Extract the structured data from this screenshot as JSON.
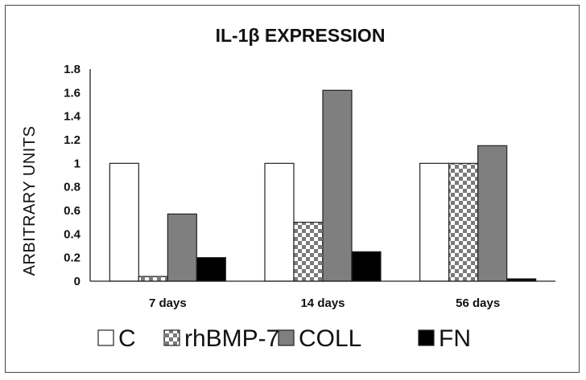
{
  "chart_data": {
    "type": "bar",
    "title": "IL-1β EXPRESSION",
    "xlabel": "",
    "ylabel": "ARBITRARY UNITS",
    "categories": [
      "7 days",
      "14 days",
      "56 days"
    ],
    "ylim": [
      0,
      1.8
    ],
    "yticks": [
      0,
      0.2,
      0.4,
      0.6,
      0.8,
      1,
      1.2,
      1.4,
      1.6,
      1.8
    ],
    "ytick_labels": [
      "0",
      "0.2",
      "0.4",
      "0.6",
      "0.8",
      "1",
      "1.2",
      "1.4",
      "1.6",
      "1.8"
    ],
    "grid": false,
    "legend_position": "bottom",
    "series": [
      {
        "name": "C",
        "values": [
          1.0,
          1.0,
          1.0
        ],
        "fill": "#ffffff",
        "pattern": "none"
      },
      {
        "name": "rhBMP-7",
        "values": [
          0.04,
          0.5,
          1.0
        ],
        "fill": "#808080",
        "pattern": "checker"
      },
      {
        "name": "COLL",
        "values": [
          0.57,
          1.62,
          1.15
        ],
        "fill": "#7f7f7f",
        "pattern": "none"
      },
      {
        "name": "FN",
        "values": [
          0.2,
          0.25,
          0.02
        ],
        "fill": "#000000",
        "pattern": "none"
      }
    ]
  }
}
